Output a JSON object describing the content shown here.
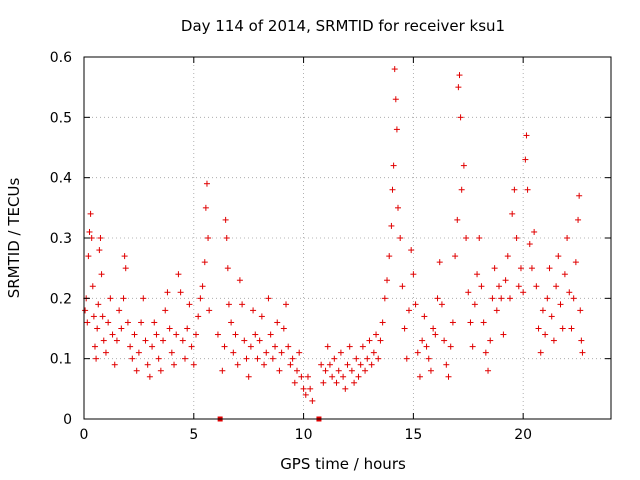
{
  "chart_data": {
    "type": "scatter",
    "title": "Day 114 of 2014, SRMTID for receiver ksu1",
    "xlabel": "GPS time / hours",
    "ylabel": "SRMTID / TECUs",
    "xlim": [
      0,
      24
    ],
    "ylim": [
      0,
      0.6
    ],
    "xticks": [
      0,
      5,
      10,
      15,
      20
    ],
    "xtick_labels": [
      "0",
      "5",
      "10",
      "15",
      "20"
    ],
    "yticks": [
      0,
      0.1,
      0.2,
      0.3,
      0.4,
      0.5,
      0.6
    ],
    "ytick_labels": [
      "0",
      "0.1",
      "0.2",
      "0.3",
      "0.4",
      "0.5",
      "0.6"
    ],
    "grid": true,
    "marker": "plus",
    "color": "#e00000",
    "zero_points_x": [
      6.2,
      10.7
    ],
    "series": [
      {
        "name": "SRMTID",
        "points": [
          [
            0.05,
            0.18
          ],
          [
            0.1,
            0.2
          ],
          [
            0.15,
            0.16
          ],
          [
            0.2,
            0.27
          ],
          [
            0.25,
            0.31
          ],
          [
            0.3,
            0.34
          ],
          [
            0.35,
            0.3
          ],
          [
            0.4,
            0.22
          ],
          [
            0.45,
            0.17
          ],
          [
            0.5,
            0.12
          ],
          [
            0.55,
            0.1
          ],
          [
            0.6,
            0.15
          ],
          [
            0.65,
            0.19
          ],
          [
            0.7,
            0.28
          ],
          [
            0.75,
            0.3
          ],
          [
            0.8,
            0.24
          ],
          [
            0.85,
            0.17
          ],
          [
            0.9,
            0.13
          ],
          [
            1.0,
            0.11
          ],
          [
            1.1,
            0.16
          ],
          [
            1.2,
            0.2
          ],
          [
            1.3,
            0.14
          ],
          [
            1.4,
            0.09
          ],
          [
            1.5,
            0.13
          ],
          [
            1.6,
            0.18
          ],
          [
            1.7,
            0.15
          ],
          [
            1.8,
            0.2
          ],
          [
            1.85,
            0.27
          ],
          [
            1.9,
            0.25
          ],
          [
            2.0,
            0.16
          ],
          [
            2.1,
            0.12
          ],
          [
            2.2,
            0.1
          ],
          [
            2.3,
            0.14
          ],
          [
            2.4,
            0.08
          ],
          [
            2.5,
            0.11
          ],
          [
            2.6,
            0.16
          ],
          [
            2.7,
            0.2
          ],
          [
            2.8,
            0.13
          ],
          [
            2.9,
            0.09
          ],
          [
            3.0,
            0.07
          ],
          [
            3.1,
            0.12
          ],
          [
            3.2,
            0.16
          ],
          [
            3.3,
            0.14
          ],
          [
            3.4,
            0.1
          ],
          [
            3.5,
            0.08
          ],
          [
            3.6,
            0.13
          ],
          [
            3.7,
            0.18
          ],
          [
            3.8,
            0.21
          ],
          [
            3.9,
            0.15
          ],
          [
            4.0,
            0.11
          ],
          [
            4.1,
            0.09
          ],
          [
            4.2,
            0.14
          ],
          [
            4.3,
            0.24
          ],
          [
            4.4,
            0.21
          ],
          [
            4.5,
            0.13
          ],
          [
            4.6,
            0.1
          ],
          [
            4.7,
            0.15
          ],
          [
            4.8,
            0.19
          ],
          [
            4.9,
            0.12
          ],
          [
            5.0,
            0.09
          ],
          [
            5.1,
            0.14
          ],
          [
            5.2,
            0.17
          ],
          [
            5.3,
            0.2
          ],
          [
            5.4,
            0.22
          ],
          [
            5.5,
            0.26
          ],
          [
            5.55,
            0.35
          ],
          [
            5.6,
            0.39
          ],
          [
            5.65,
            0.3
          ],
          [
            5.7,
            0.18
          ],
          [
            6.1,
            0.14
          ],
          [
            6.3,
            0.08
          ],
          [
            6.4,
            0.12
          ],
          [
            6.45,
            0.33
          ],
          [
            6.5,
            0.3
          ],
          [
            6.55,
            0.25
          ],
          [
            6.6,
            0.19
          ],
          [
            6.7,
            0.16
          ],
          [
            6.8,
            0.11
          ],
          [
            6.9,
            0.14
          ],
          [
            7.0,
            0.09
          ],
          [
            7.1,
            0.23
          ],
          [
            7.2,
            0.19
          ],
          [
            7.3,
            0.13
          ],
          [
            7.4,
            0.1
          ],
          [
            7.5,
            0.07
          ],
          [
            7.6,
            0.12
          ],
          [
            7.7,
            0.18
          ],
          [
            7.8,
            0.14
          ],
          [
            7.9,
            0.1
          ],
          [
            8.0,
            0.13
          ],
          [
            8.1,
            0.17
          ],
          [
            8.2,
            0.09
          ],
          [
            8.3,
            0.11
          ],
          [
            8.4,
            0.2
          ],
          [
            8.5,
            0.14
          ],
          [
            8.6,
            0.1
          ],
          [
            8.7,
            0.12
          ],
          [
            8.8,
            0.16
          ],
          [
            8.9,
            0.08
          ],
          [
            9.0,
            0.11
          ],
          [
            9.1,
            0.15
          ],
          [
            9.2,
            0.19
          ],
          [
            9.3,
            0.12
          ],
          [
            9.4,
            0.09
          ],
          [
            9.5,
            0.1
          ],
          [
            9.6,
            0.06
          ],
          [
            9.7,
            0.08
          ],
          [
            9.8,
            0.11
          ],
          [
            9.9,
            0.07
          ],
          [
            10.0,
            0.05
          ],
          [
            10.1,
            0.04
          ],
          [
            10.2,
            0.07
          ],
          [
            10.3,
            0.05
          ],
          [
            10.4,
            0.03
          ],
          [
            10.8,
            0.09
          ],
          [
            10.9,
            0.06
          ],
          [
            11.0,
            0.08
          ],
          [
            11.1,
            0.12
          ],
          [
            11.2,
            0.09
          ],
          [
            11.3,
            0.07
          ],
          [
            11.4,
            0.1
          ],
          [
            11.5,
            0.06
          ],
          [
            11.6,
            0.08
          ],
          [
            11.7,
            0.11
          ],
          [
            11.8,
            0.07
          ],
          [
            11.9,
            0.05
          ],
          [
            12.0,
            0.09
          ],
          [
            12.1,
            0.12
          ],
          [
            12.2,
            0.08
          ],
          [
            12.3,
            0.06
          ],
          [
            12.4,
            0.1
          ],
          [
            12.5,
            0.07
          ],
          [
            12.6,
            0.09
          ],
          [
            12.7,
            0.12
          ],
          [
            12.8,
            0.08
          ],
          [
            12.9,
            0.1
          ],
          [
            13.0,
            0.13
          ],
          [
            13.1,
            0.09
          ],
          [
            13.2,
            0.11
          ],
          [
            13.3,
            0.14
          ],
          [
            13.4,
            0.1
          ],
          [
            13.5,
            0.13
          ],
          [
            13.6,
            0.16
          ],
          [
            13.7,
            0.2
          ],
          [
            13.8,
            0.23
          ],
          [
            13.9,
            0.27
          ],
          [
            14.0,
            0.32
          ],
          [
            14.05,
            0.38
          ],
          [
            14.1,
            0.42
          ],
          [
            14.15,
            0.58
          ],
          [
            14.2,
            0.53
          ],
          [
            14.25,
            0.48
          ],
          [
            14.3,
            0.35
          ],
          [
            14.4,
            0.3
          ],
          [
            14.5,
            0.22
          ],
          [
            14.6,
            0.15
          ],
          [
            14.7,
            0.1
          ],
          [
            14.8,
            0.18
          ],
          [
            14.9,
            0.28
          ],
          [
            15.0,
            0.24
          ],
          [
            15.1,
            0.19
          ],
          [
            15.2,
            0.11
          ],
          [
            15.3,
            0.07
          ],
          [
            15.4,
            0.13
          ],
          [
            15.5,
            0.17
          ],
          [
            15.6,
            0.12
          ],
          [
            15.7,
            0.1
          ],
          [
            15.8,
            0.08
          ],
          [
            15.9,
            0.15
          ],
          [
            16.0,
            0.14
          ],
          [
            16.1,
            0.2
          ],
          [
            16.2,
            0.26
          ],
          [
            16.3,
            0.19
          ],
          [
            16.4,
            0.13
          ],
          [
            16.5,
            0.09
          ],
          [
            16.6,
            0.07
          ],
          [
            16.7,
            0.12
          ],
          [
            16.8,
            0.16
          ],
          [
            16.9,
            0.27
          ],
          [
            17.0,
            0.33
          ],
          [
            17.05,
            0.55
          ],
          [
            17.1,
            0.57
          ],
          [
            17.15,
            0.5
          ],
          [
            17.2,
            0.38
          ],
          [
            17.3,
            0.42
          ],
          [
            17.4,
            0.3
          ],
          [
            17.5,
            0.21
          ],
          [
            17.6,
            0.16
          ],
          [
            17.7,
            0.12
          ],
          [
            17.8,
            0.19
          ],
          [
            17.9,
            0.24
          ],
          [
            18.0,
            0.3
          ],
          [
            18.1,
            0.22
          ],
          [
            18.2,
            0.16
          ],
          [
            18.3,
            0.11
          ],
          [
            18.4,
            0.08
          ],
          [
            18.5,
            0.13
          ],
          [
            18.6,
            0.2
          ],
          [
            18.7,
            0.25
          ],
          [
            18.8,
            0.18
          ],
          [
            18.9,
            0.22
          ],
          [
            19.0,
            0.2
          ],
          [
            19.1,
            0.14
          ],
          [
            19.2,
            0.23
          ],
          [
            19.3,
            0.27
          ],
          [
            19.4,
            0.2
          ],
          [
            19.5,
            0.34
          ],
          [
            19.6,
            0.38
          ],
          [
            19.7,
            0.3
          ],
          [
            19.8,
            0.22
          ],
          [
            19.9,
            0.25
          ],
          [
            20.0,
            0.21
          ],
          [
            20.1,
            0.43
          ],
          [
            20.15,
            0.47
          ],
          [
            20.2,
            0.38
          ],
          [
            20.3,
            0.29
          ],
          [
            20.4,
            0.25
          ],
          [
            20.5,
            0.31
          ],
          [
            20.6,
            0.22
          ],
          [
            20.7,
            0.15
          ],
          [
            20.8,
            0.11
          ],
          [
            20.9,
            0.18
          ],
          [
            21.0,
            0.14
          ],
          [
            21.1,
            0.2
          ],
          [
            21.2,
            0.25
          ],
          [
            21.3,
            0.17
          ],
          [
            21.4,
            0.13
          ],
          [
            21.5,
            0.22
          ],
          [
            21.6,
            0.27
          ],
          [
            21.7,
            0.19
          ],
          [
            21.8,
            0.15
          ],
          [
            21.9,
            0.24
          ],
          [
            22.0,
            0.3
          ],
          [
            22.1,
            0.21
          ],
          [
            22.2,
            0.15
          ],
          [
            22.3,
            0.2
          ],
          [
            22.4,
            0.26
          ],
          [
            22.5,
            0.33
          ],
          [
            22.55,
            0.37
          ],
          [
            22.6,
            0.18
          ],
          [
            22.65,
            0.13
          ],
          [
            22.7,
            0.11
          ]
        ]
      }
    ]
  }
}
